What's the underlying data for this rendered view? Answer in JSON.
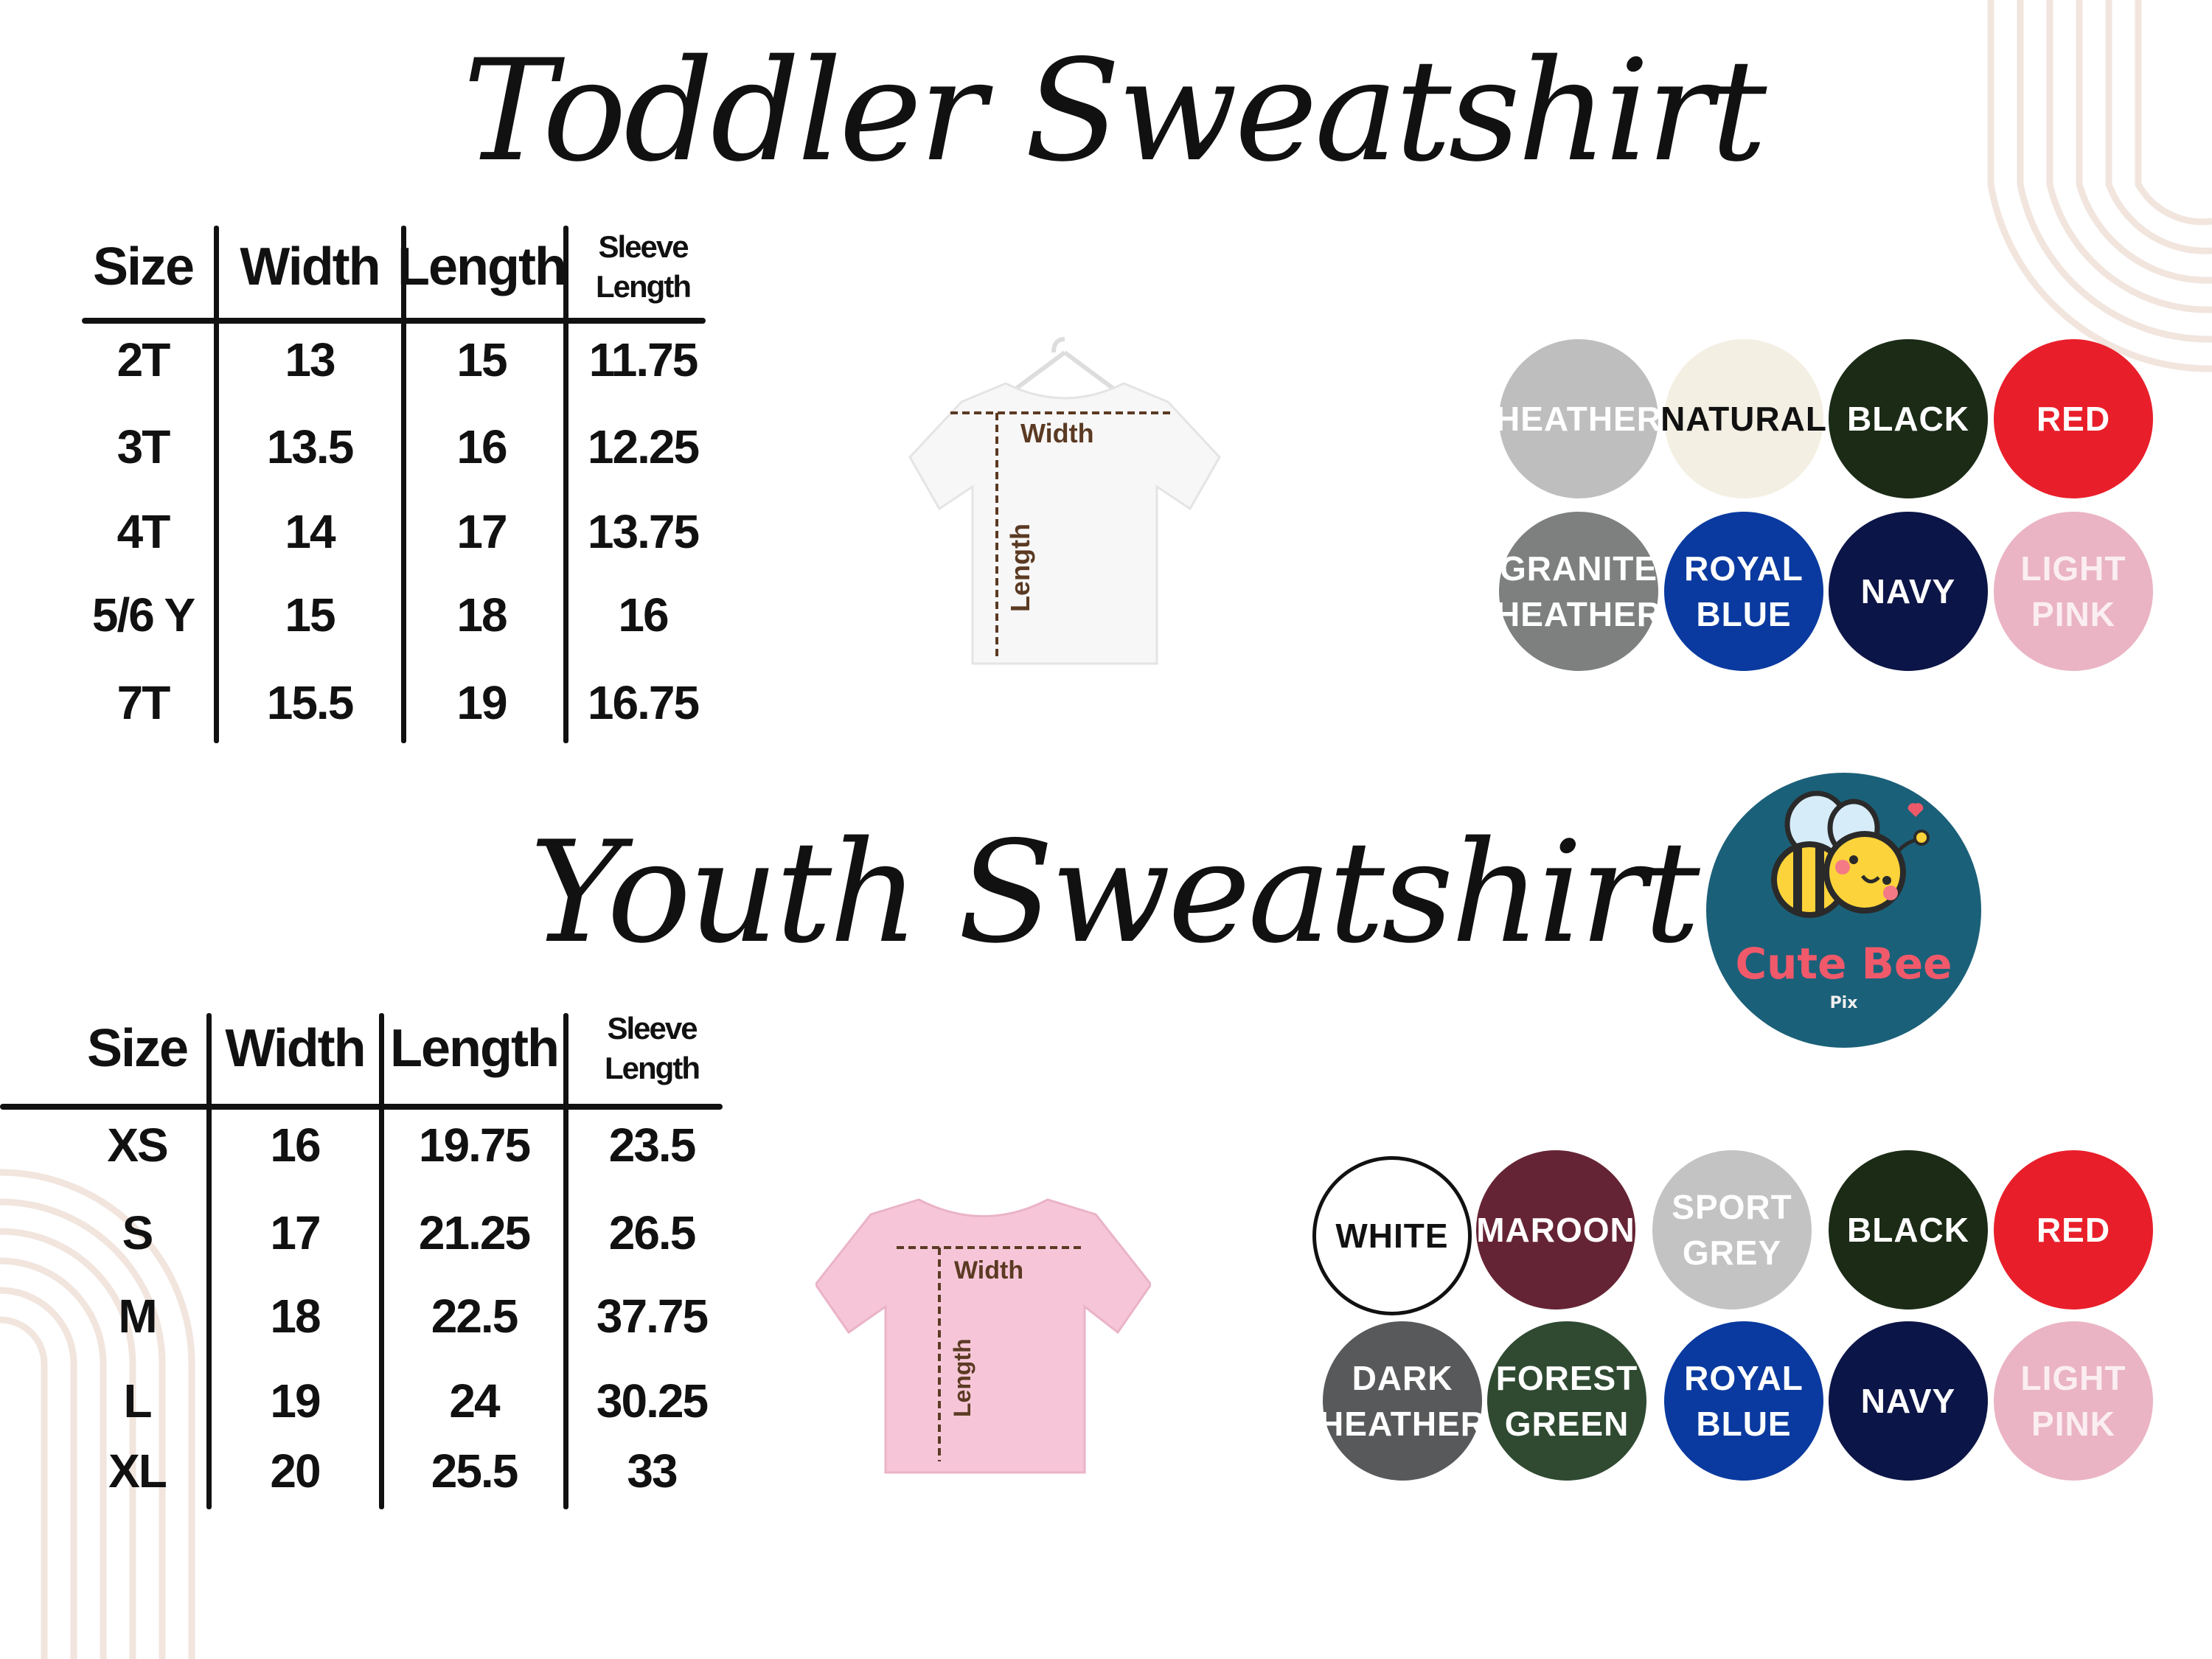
{
  "toddler": {
    "title": "Toddler Sweatshirt",
    "headers": [
      "Size",
      "Width",
      "Length",
      "Sleeve Length"
    ],
    "rows": [
      [
        "2T",
        "13",
        "15",
        "11.75"
      ],
      [
        "3T",
        "13.5",
        "16",
        "12.25"
      ],
      [
        "4T",
        "14",
        "17",
        "13.75"
      ],
      [
        "5/6 Y",
        "15",
        "18",
        "16"
      ],
      [
        "7T",
        "15.5",
        "19",
        "16.75"
      ]
    ],
    "shirt": {
      "width_label": "Width",
      "length_label": "Length",
      "color": "#f7f7f7"
    },
    "colors": [
      {
        "name": "HEATHER",
        "hex": "#bebebe",
        "text": "#ffffff"
      },
      {
        "name": "NATURAL",
        "hex": "#f4efe3",
        "text": "#111111"
      },
      {
        "name": "BLACK",
        "hex": "#1b2b16",
        "text": "#ffffff"
      },
      {
        "name": "RED",
        "hex": "#e81f2a",
        "text": "#ffffff"
      },
      {
        "name": "GRANITE HEATHER",
        "hex": "#7e8080",
        "text": "#ffffff"
      },
      {
        "name": "ROYAL BLUE",
        "hex": "#0a3a9f",
        "text": "#ffffff"
      },
      {
        "name": "NAVY",
        "hex": "#0c1547",
        "text": "#ffffff"
      },
      {
        "name": "LIGHT PINK",
        "hex": "#eab4c4",
        "text": "#fbeef2"
      }
    ]
  },
  "youth": {
    "title": "Youth Sweatshirt",
    "headers": [
      "Size",
      "Width",
      "Length",
      "Sleeve Length"
    ],
    "rows": [
      [
        "XS",
        "16",
        "19.75",
        "23.5"
      ],
      [
        "S",
        "17",
        "21.25",
        "26.5"
      ],
      [
        "M",
        "18",
        "22.5",
        "37.75"
      ],
      [
        "L",
        "19",
        "24",
        "30.25"
      ],
      [
        "XL",
        "20",
        "25.5",
        "33"
      ]
    ],
    "shirt": {
      "width_label": "Width",
      "length_label": "Length",
      "color": "#f6c6d8"
    },
    "colors": [
      {
        "name": "WHITE",
        "hex": "#ffffff",
        "text": "#111111"
      },
      {
        "name": "MAROON",
        "hex": "#652435",
        "text": "#ffffff"
      },
      {
        "name": "SPORT GREY",
        "hex": "#c3c3c3",
        "text": "#ffffff"
      },
      {
        "name": "BLACK",
        "hex": "#1b2b16",
        "text": "#ffffff"
      },
      {
        "name": "RED",
        "hex": "#e81f2a",
        "text": "#ffffff"
      },
      {
        "name": "DARK HEATHER",
        "hex": "#58595a",
        "text": "#ffffff"
      },
      {
        "name": "FOREST GREEN",
        "hex": "#2f4a31",
        "text": "#ffffff"
      },
      {
        "name": "ROYAL BLUE",
        "hex": "#0a3a9f",
        "text": "#ffffff"
      },
      {
        "name": "NAVY",
        "hex": "#0c1547",
        "text": "#ffffff"
      },
      {
        "name": "LIGHT PINK",
        "hex": "#eab4c4",
        "text": "#fbeef2"
      }
    ]
  },
  "logo": {
    "name": "Cute Bee",
    "sub": "Pix",
    "bg": "#1b6079",
    "accent": "#f0596a"
  },
  "decor_color": "#f1e5de"
}
